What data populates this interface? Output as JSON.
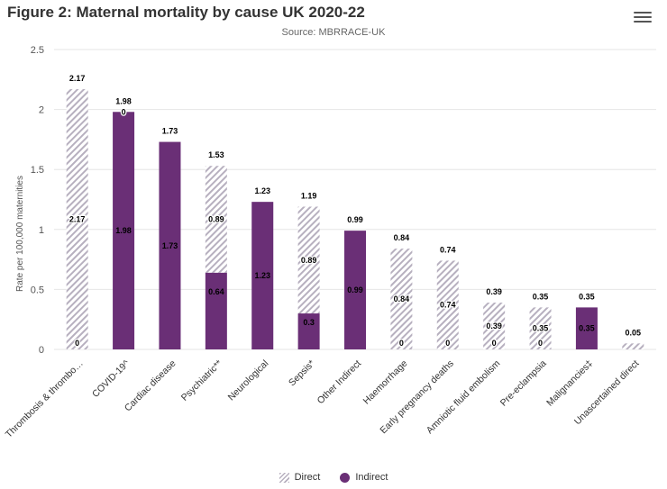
{
  "header": {
    "title": "Figure 2: Maternal mortality by cause UK 2020-22",
    "menu_icon": "hamburger-menu-icon"
  },
  "chart_data": {
    "type": "bar",
    "stacked": true,
    "title": "Figure 2: Maternal mortality by cause UK 2020-22",
    "subtitle": "Source: MBRRACE-UK",
    "xlabel": "",
    "ylabel": "Rate per 100,000 maternities",
    "ylim": [
      0,
      2.5
    ],
    "yticks": [
      0,
      0.5,
      1,
      1.5,
      2,
      2.5
    ],
    "categories": [
      "Thrombosis & thrombo…",
      "COVID-19^",
      "Cardiac disease",
      "Psychiatric**",
      "Neurological",
      "Sepsis*",
      "Other Indirect",
      "Haemorrhage",
      "Early pregnancy deaths",
      "Amniotic fluid embolism",
      "Pre-eclampsia",
      "Malignancies‡",
      "Unascertained direct"
    ],
    "series": [
      {
        "name": "Direct",
        "color": "#b7b0bf",
        "pattern": "diagonal-hatch",
        "values": [
          2.17,
          0,
          0,
          0.89,
          0,
          0.89,
          0,
          0.84,
          0.74,
          0.39,
          0.35,
          0,
          0.05
        ],
        "labels": [
          "2.17",
          "0",
          "",
          "0.89",
          "",
          "0.89",
          "",
          "0.84",
          "0.74",
          "0.39",
          "0.35",
          "",
          ""
        ]
      },
      {
        "name": "Indirect",
        "color": "#6a2f76",
        "values": [
          0,
          1.98,
          1.73,
          0.64,
          1.23,
          0.3,
          0.99,
          0,
          0,
          0,
          0,
          0.35,
          0
        ],
        "labels": [
          "",
          "1.98",
          "1.73",
          "0.64",
          "1.23",
          "0.3",
          "0.99",
          "",
          "",
          "",
          "",
          "0.35",
          ""
        ]
      }
    ],
    "base_labels": [
      "0",
      "",
      "",
      "",
      "",
      "",
      "",
      "0",
      "0",
      "0",
      "0",
      "",
      ""
    ],
    "totals": [
      "2.17",
      "1.98",
      "1.73",
      "1.53",
      "1.23",
      "1.19",
      "0.99",
      "0.84",
      "0.74",
      "0.39",
      "0.35",
      "0.35",
      "0.05"
    ],
    "grid": true,
    "legend_position": "bottom-center"
  }
}
